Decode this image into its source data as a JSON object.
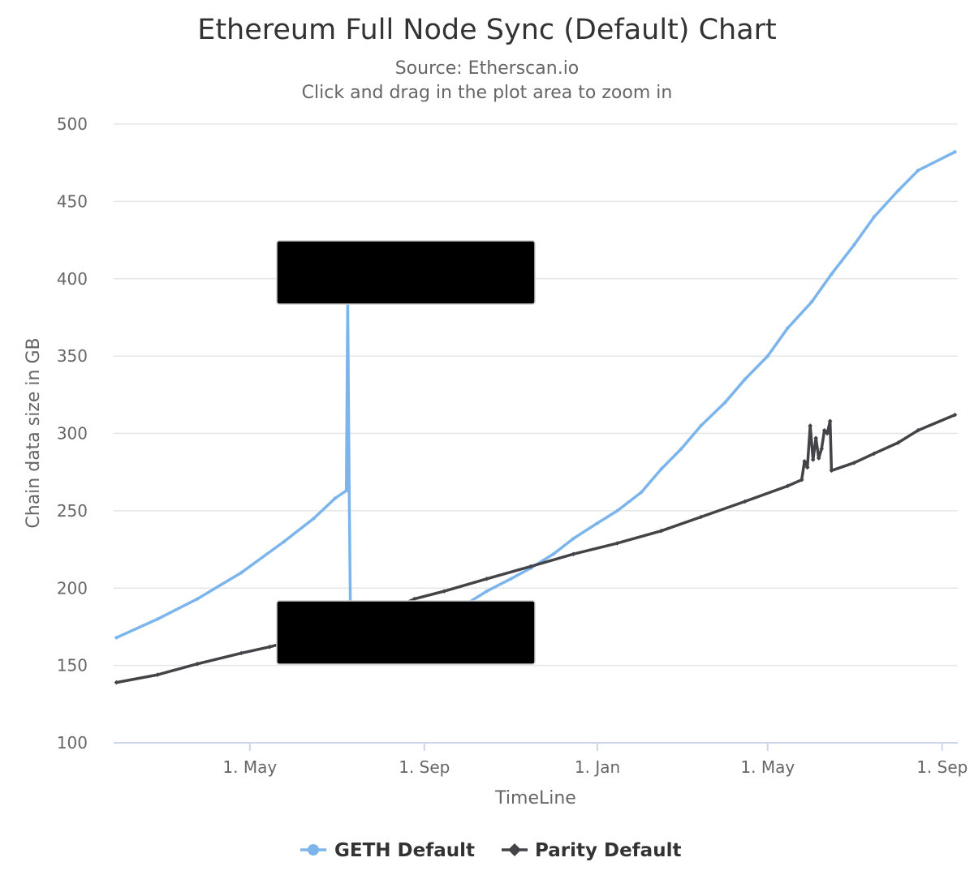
{
  "chart_data": {
    "type": "line",
    "title": "Ethereum Full Node Sync (Default) Chart",
    "subtitle": "Source: Etherscan.io",
    "hint": "Click and drag in the plot area to zoom in",
    "xlabel": "TimeLine",
    "ylabel": "Chain data size in GB",
    "ylim": [
      100,
      500
    ],
    "y_ticks": [
      "100",
      "150",
      "200",
      "250",
      "300",
      "350",
      "400",
      "450",
      "500"
    ],
    "x_range": [
      "2018-01-25",
      "2019-09-12"
    ],
    "x_ticks": [
      {
        "date": "2018-05-01",
        "label": "1. May"
      },
      {
        "date": "2018-09-01",
        "label": "1. Sep"
      },
      {
        "date": "2019-01-01",
        "label": "1. Jan"
      },
      {
        "date": "2019-05-01",
        "label": "1. May"
      },
      {
        "date": "2019-09-01",
        "label": "1. Sep"
      }
    ],
    "grid": true,
    "legend_position": "bottom-center",
    "series": [
      {
        "name": "GETH Default",
        "color": "#7cb5ec",
        "marker": "circle",
        "points": [
          [
            "2018-01-27",
            168
          ],
          [
            "2018-02-25",
            180
          ],
          [
            "2018-03-25",
            193
          ],
          [
            "2018-04-25",
            210
          ],
          [
            "2018-05-25",
            230
          ],
          [
            "2018-06-15",
            245
          ],
          [
            "2018-06-30",
            258
          ],
          [
            "2018-07-08",
            263
          ],
          [
            "2018-07-09",
            385
          ],
          [
            "2018-07-10",
            265
          ],
          [
            "2018-07-11",
            175
          ],
          [
            "2018-08-15",
            178
          ],
          [
            "2018-09-01",
            180
          ],
          [
            "2018-09-15",
            183
          ],
          [
            "2018-10-01",
            190
          ],
          [
            "2018-10-15",
            198
          ],
          [
            "2018-11-01",
            206
          ],
          [
            "2018-11-15",
            213
          ],
          [
            "2018-12-01",
            222
          ],
          [
            "2018-12-15",
            232
          ],
          [
            "2019-01-01",
            242
          ],
          [
            "2019-01-15",
            250
          ],
          [
            "2019-02-01",
            262
          ],
          [
            "2019-02-15",
            277
          ],
          [
            "2019-03-01",
            290
          ],
          [
            "2019-03-15",
            305
          ],
          [
            "2019-04-01",
            320
          ],
          [
            "2019-04-15",
            335
          ],
          [
            "2019-05-01",
            350
          ],
          [
            "2019-05-15",
            368
          ],
          [
            "2019-06-01",
            385
          ],
          [
            "2019-06-15",
            403
          ],
          [
            "2019-07-01",
            422
          ],
          [
            "2019-07-15",
            440
          ],
          [
            "2019-08-01",
            457
          ],
          [
            "2019-08-15",
            470
          ],
          [
            "2019-09-10",
            482
          ]
        ]
      },
      {
        "name": "Parity Default",
        "color": "#434348",
        "marker": "diamond",
        "points": [
          [
            "2018-01-27",
            139
          ],
          [
            "2018-02-25",
            144
          ],
          [
            "2018-03-25",
            151
          ],
          [
            "2018-04-25",
            158
          ],
          [
            "2018-05-15",
            162
          ],
          [
            "2018-06-01",
            166
          ],
          [
            "2018-07-01",
            174
          ],
          [
            "2018-08-01",
            183
          ],
          [
            "2018-08-25",
            193
          ],
          [
            "2018-09-15",
            198
          ],
          [
            "2018-10-15",
            206
          ],
          [
            "2018-11-15",
            214
          ],
          [
            "2018-12-15",
            222
          ],
          [
            "2019-01-15",
            229
          ],
          [
            "2019-02-15",
            237
          ],
          [
            "2019-03-15",
            246
          ],
          [
            "2019-04-15",
            256
          ],
          [
            "2019-05-15",
            266
          ],
          [
            "2019-05-25",
            270
          ],
          [
            "2019-05-27",
            282
          ],
          [
            "2019-05-29",
            278
          ],
          [
            "2019-05-31",
            305
          ],
          [
            "2019-06-02",
            283
          ],
          [
            "2019-06-04",
            297
          ],
          [
            "2019-06-06",
            284
          ],
          [
            "2019-06-08",
            290
          ],
          [
            "2019-06-10",
            302
          ],
          [
            "2019-06-12",
            300
          ],
          [
            "2019-06-14",
            308
          ],
          [
            "2019-06-15",
            276
          ],
          [
            "2019-07-01",
            281
          ],
          [
            "2019-07-15",
            287
          ],
          [
            "2019-08-01",
            294
          ],
          [
            "2019-08-15",
            302
          ],
          [
            "2019-09-10",
            312
          ]
        ]
      }
    ]
  }
}
